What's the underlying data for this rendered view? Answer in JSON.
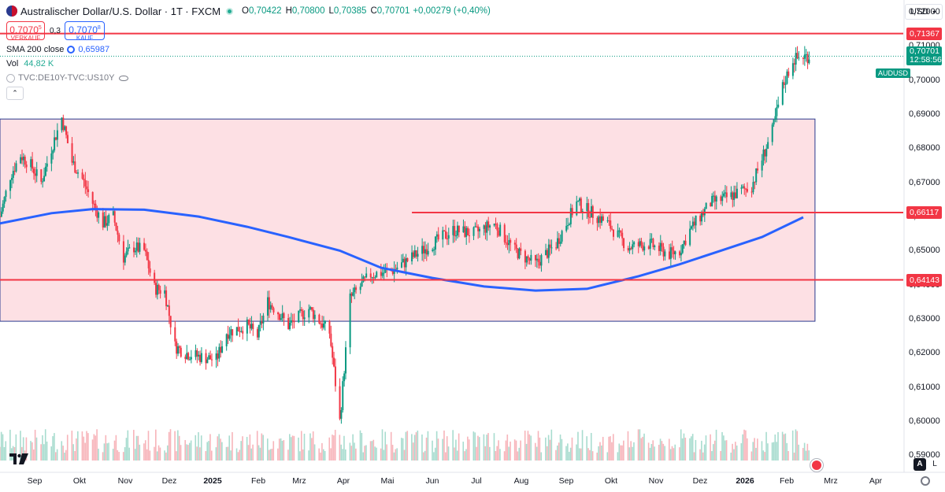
{
  "header": {
    "title": "Australischer Dollar/U.S. Dollar · 1T · FXCM",
    "open_label": "O",
    "open": "0,70422",
    "high_label": "H",
    "high": "0,70800",
    "low_label": "L",
    "low": "0,70385",
    "close_label": "C",
    "close": "0,70701",
    "change": "+0,00279 (+0,40%)"
  },
  "trade": {
    "sell_price": "0,7070",
    "sell_sup": "5",
    "sell_label": "VERKAUF",
    "spread": "0,3",
    "buy_price": "0,7070",
    "buy_sup": "8",
    "buy_label": "KAUF"
  },
  "indicators": {
    "sma_label": "SMA 200 close",
    "sma_value": "0,65987",
    "vol_label": "Vol",
    "vol_value": "44,82 K",
    "spread_symbol": "TVC:DE10Y-TVC:US10Y"
  },
  "currency": "USD",
  "y_axis_labels": [
    "0,72000",
    "0,71000",
    "0,70000",
    "0,69000",
    "0,68000",
    "0,67000",
    "0,66000",
    "0,65000",
    "0,64000",
    "0,63000",
    "0,62000",
    "0,61000",
    "0,60000",
    "0,59000"
  ],
  "price_tags": {
    "resistance": "0,71367",
    "mid": "0,66117",
    "support": "0,64143",
    "last_symbol": "AUDUSD",
    "last_price": "0,70701",
    "countdown": "12:58:56"
  },
  "x_axis_labels": [
    "Sep",
    "Okt",
    "Nov",
    "Dez",
    "2025",
    "Feb",
    "Mrz",
    "Apr",
    "Mai",
    "Jun",
    "Jul",
    "Aug",
    "Sep",
    "Okt",
    "Nov",
    "Dez",
    "2026",
    "Feb",
    "Mrz",
    "Apr"
  ],
  "bottom_controls": {
    "auto": "A",
    "log": "L"
  },
  "colors": {
    "up": "#089981",
    "down": "#f23645",
    "sma": "#2962ff",
    "level": "#f23645",
    "zone_fill": "#fde0e4",
    "zone_border": "#2a3a8f"
  },
  "chart_data": {
    "type": "candlestick",
    "symbol": "AUDUSD",
    "timeframe": "1T",
    "y_range": [
      0.585,
      0.7235
    ],
    "x_range": [
      "2024-08-19",
      "2026-04-25"
    ],
    "grid": false,
    "horizontal_levels": [
      {
        "value": 0.71367,
        "from": "2024-08-19",
        "to": "2026-04-25"
      },
      {
        "value": 0.66117,
        "from": "2025-05-26",
        "to": "2026-04-25"
      },
      {
        "value": 0.64143,
        "from": "2024-08-19",
        "to": "2026-04-25"
      }
    ],
    "zone": {
      "top": 0.6886,
      "bottom": 0.6293,
      "from": "2024-08-19",
      "to": "2026-02-24"
    },
    "close_path": [
      [
        "2024-08-19",
        0.66
      ],
      [
        "2024-08-26",
        0.672
      ],
      [
        "2024-09-02",
        0.678
      ],
      [
        "2024-09-09",
        0.675
      ],
      [
        "2024-09-16",
        0.67
      ],
      [
        "2024-09-23",
        0.68
      ],
      [
        "2024-09-30",
        0.689
      ],
      [
        "2024-10-07",
        0.676
      ],
      [
        "2024-10-14",
        0.671
      ],
      [
        "2024-10-21",
        0.664
      ],
      [
        "2024-10-28",
        0.658
      ],
      [
        "2024-11-04",
        0.66
      ],
      [
        "2024-11-11",
        0.648
      ],
      [
        "2024-11-18",
        0.651
      ],
      [
        "2024-11-25",
        0.65
      ],
      [
        "2024-12-02",
        0.639
      ],
      [
        "2024-12-09",
        0.638
      ],
      [
        "2024-12-16",
        0.622
      ],
      [
        "2024-12-23",
        0.62
      ],
      [
        "2025-01-01",
        0.619
      ],
      [
        "2025-01-13",
        0.618
      ],
      [
        "2025-01-20",
        0.626
      ],
      [
        "2025-02-03",
        0.628
      ],
      [
        "2025-02-10",
        0.625
      ],
      [
        "2025-02-17",
        0.635
      ],
      [
        "2025-02-24",
        0.632
      ],
      [
        "2025-03-03",
        0.628
      ],
      [
        "2025-03-17",
        0.633
      ],
      [
        "2025-03-31",
        0.626
      ],
      [
        "2025-04-07",
        0.6
      ],
      [
        "2025-04-14",
        0.636
      ],
      [
        "2025-04-28",
        0.643
      ],
      [
        "2025-05-12",
        0.644
      ],
      [
        "2025-05-26",
        0.648
      ],
      [
        "2025-06-09",
        0.652
      ],
      [
        "2025-06-23",
        0.656
      ],
      [
        "2025-07-07",
        0.655
      ],
      [
        "2025-07-21",
        0.658
      ],
      [
        "2025-08-04",
        0.65
      ],
      [
        "2025-08-18",
        0.646
      ],
      [
        "2025-09-01",
        0.652
      ],
      [
        "2025-09-15",
        0.664
      ],
      [
        "2025-09-22",
        0.662
      ],
      [
        "2025-10-06",
        0.658
      ],
      [
        "2025-10-20",
        0.651
      ],
      [
        "2025-11-03",
        0.652
      ],
      [
        "2025-11-17",
        0.649
      ],
      [
        "2025-11-24",
        0.65
      ],
      [
        "2025-12-01",
        0.656
      ],
      [
        "2025-12-15",
        0.664
      ],
      [
        "2025-12-29",
        0.666
      ],
      [
        "2026-01-12",
        0.669
      ],
      [
        "2026-01-26",
        0.685
      ],
      [
        "2026-02-02",
        0.698
      ],
      [
        "2026-02-09",
        0.706
      ],
      [
        "2026-02-16",
        0.707
      ]
    ],
    "sma_200": [
      [
        "2024-08-19",
        0.658
      ],
      [
        "2024-09-23",
        0.661
      ],
      [
        "2024-10-21",
        0.6622
      ],
      [
        "2024-11-25",
        0.662
      ],
      [
        "2025-01-01",
        0.66
      ],
      [
        "2025-02-03",
        0.657
      ],
      [
        "2025-03-03",
        0.654
      ],
      [
        "2025-04-07",
        0.65
      ],
      [
        "2025-05-05",
        0.645
      ],
      [
        "2025-06-09",
        0.642
      ],
      [
        "2025-07-14",
        0.6395
      ],
      [
        "2025-08-18",
        0.6383
      ],
      [
        "2025-09-22",
        0.6388
      ],
      [
        "2025-10-27",
        0.6425
      ],
      [
        "2025-11-24",
        0.646
      ],
      [
        "2025-12-22",
        0.65
      ],
      [
        "2026-01-19",
        0.654
      ],
      [
        "2026-02-16",
        0.6598
      ]
    ]
  }
}
